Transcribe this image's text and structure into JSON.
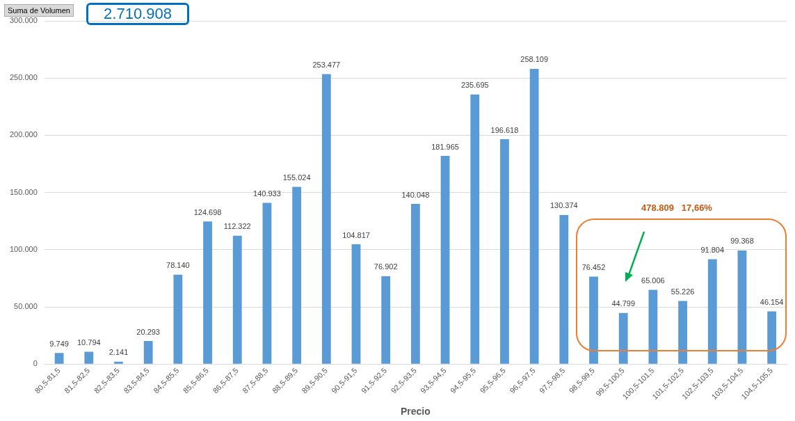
{
  "chart_data": {
    "type": "bar",
    "xlabel": "Precio",
    "categories": [
      "80,5-81,5",
      "81,5-82,5",
      "82,5-83,5",
      "83,5-84,5",
      "84,5-85,5",
      "85,5-86,5",
      "86,5-87,5",
      "87,5-88,5",
      "88,5-89,5",
      "89,5-90,5",
      "90,5-91,5",
      "91,5-92,5",
      "92,5-93,5",
      "93,5-94,5",
      "94,5-95,5",
      "95,5-96,5",
      "96,5-97,5",
      "97,5-98,5",
      "98,5-99,5",
      "99,5-100,5",
      "100,5-101,5",
      "101,5-102,5",
      "102,5-103,5",
      "103,5-104,5",
      "104,5-105,5"
    ],
    "values": [
      9749,
      10794,
      2141,
      20293,
      78140,
      124698,
      112322,
      140933,
      155024,
      253477,
      104817,
      76902,
      140048,
      181965,
      235695,
      196618,
      258109,
      130374,
      76452,
      44799,
      65006,
      55226,
      91804,
      99368,
      46154
    ],
    "value_labels": [
      "9.749",
      "10.794",
      "2.141",
      "20.293",
      "78.140",
      "124.698",
      "112.322",
      "140.933",
      "155.024",
      "253.477",
      "104.817",
      "76.902",
      "140.048",
      "181.965",
      "235.695",
      "196.618",
      "258.109",
      "130.374",
      "76.452",
      "44.799",
      "65.006",
      "55.226",
      "91.804",
      "99.368",
      "46.154"
    ],
    "color": "#5b9bd5",
    "ylim": [
      0,
      300000
    ],
    "yticks": [
      {
        "value": 0,
        "label": "0"
      },
      {
        "value": 50000,
        "label": "50.000"
      },
      {
        "value": 100000,
        "label": "100.000"
      },
      {
        "value": 150000,
        "label": "150.000"
      },
      {
        "value": 200000,
        "label": "200.000"
      },
      {
        "value": 250000,
        "label": "250.000"
      },
      {
        "value": 300000,
        "label": "300.000"
      }
    ],
    "grid": "y",
    "legend": false,
    "annotations": [
      "Suma de Volumen",
      "2.710.908",
      "478.809   17,66%"
    ]
  }
}
